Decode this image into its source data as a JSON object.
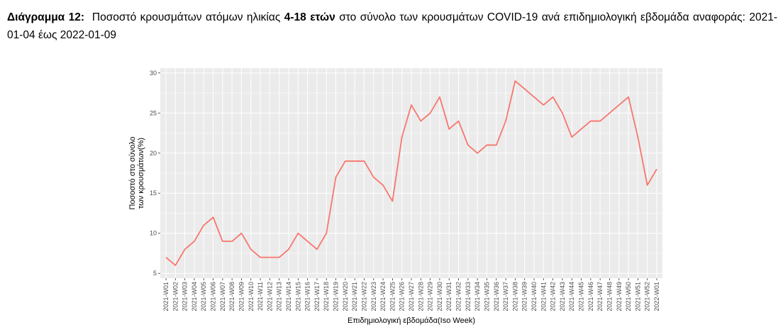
{
  "caption": {
    "label": "Διάγραμμα 12:",
    "part1": "Ποσοστό κρουσμάτων ατόμων ηλικίας",
    "age_group": "4-18 ετών",
    "part2": "στο σύνολο των κρουσμάτων COVID-19 ανά επιδημιολογική εβδομάδα αναφοράς: 2021-01-04 έως 2022-01-09"
  },
  "chart_data": {
    "type": "line",
    "title": "",
    "xlabel": "Επιδημιολογική εβδομάδα(Iso Week)",
    "ylabel_lines": [
      "Ποσοστό στο σύνολο",
      "των κρουσμάτων(%)"
    ],
    "ylim": [
      5,
      30
    ],
    "yticks": [
      5,
      10,
      15,
      20,
      25,
      30
    ],
    "grid": true,
    "line_color": "#F8766D",
    "panel_background": "#EBEBEB",
    "categories": [
      "2021-W01",
      "2021-W02",
      "2021-W03",
      "2021-W04",
      "2021-W05",
      "2021-W06",
      "2021-W07",
      "2021-W08",
      "2021-W09",
      "2021-W10",
      "2021-W11",
      "2021-W12",
      "2021-W13",
      "2021-W14",
      "2021-W15",
      "2021-W16",
      "2021-W17",
      "2021-W18",
      "2021-W19",
      "2021-W20",
      "2021-W21",
      "2021-W22",
      "2021-W23",
      "2021-W24",
      "2021-W25",
      "2021-W26",
      "2021-W27",
      "2021-W28",
      "2021-W29",
      "2021-W30",
      "2021-W31",
      "2021-W32",
      "2021-W33",
      "2021-W34",
      "2021-W35",
      "2021-W36",
      "2021-W37",
      "2021-W38",
      "2021-W39",
      "2021-W40",
      "2021-W41",
      "2021-W42",
      "2021-W43",
      "2021-W44",
      "2021-W45",
      "2021-W46",
      "2021-W47",
      "2021-W48",
      "2021-W49",
      "2021-W50",
      "2021-W51",
      "2021-W52",
      "2022-W01"
    ],
    "values": [
      7,
      6,
      8,
      9,
      11,
      12,
      9,
      9,
      10,
      8,
      7,
      7,
      7,
      8,
      10,
      9,
      8,
      10,
      17,
      19,
      19,
      19,
      17,
      16,
      14,
      22,
      26,
      24,
      25,
      27,
      23,
      24,
      21,
      20,
      21,
      21,
      24,
      29,
      28,
      27,
      26,
      27,
      25,
      22,
      23,
      24,
      24,
      25,
      26,
      27,
      22,
      16,
      18
    ]
  }
}
